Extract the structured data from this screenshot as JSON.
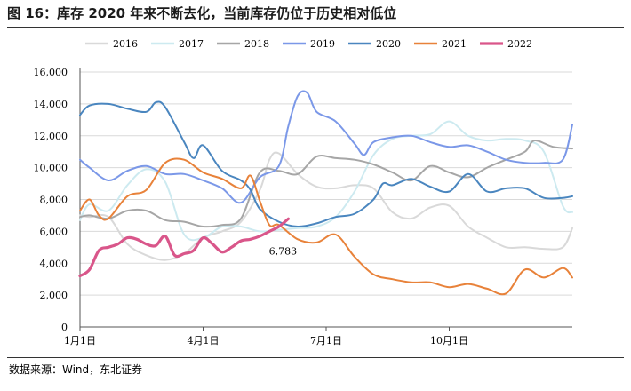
{
  "header": {
    "title": "图 16：库存 2020 年来不断去化，当前库存仍位于历史相对低位"
  },
  "footer": {
    "source": "数据来源：Wind，东北证券"
  },
  "chart_data": {
    "type": "line",
    "title": "",
    "xlabel": "",
    "ylabel": "",
    "ylim": [
      0,
      16000
    ],
    "yticks": [
      0,
      2000,
      4000,
      6000,
      8000,
      10000,
      12000,
      14000,
      16000
    ],
    "ytick_labels": [
      "0",
      "2,000",
      "4,000",
      "6,000",
      "8,000",
      "10,000",
      "12,000",
      "14,000",
      "16,000"
    ],
    "xlim_week": [
      1,
      53
    ],
    "xticks": [
      {
        "label": "1月1日",
        "week": 1
      },
      {
        "label": "4月1日",
        "week": 14
      },
      {
        "label": "7月1日",
        "week": 27
      },
      {
        "label": "10月1日",
        "week": 40
      }
    ],
    "x_unit": "week of year",
    "annotation": {
      "text": "6,783",
      "series": "2022",
      "week": 23,
      "value": 6783
    },
    "series": [
      {
        "name": "2016",
        "color": "#d9d9d9",
        "values": [
          [
            1,
            7000
          ],
          [
            2,
            6900
          ],
          [
            4,
            6900
          ],
          [
            6,
            5200
          ],
          [
            8,
            4500
          ],
          [
            10,
            4200
          ],
          [
            12,
            4600
          ],
          [
            14,
            5600
          ],
          [
            16,
            6000
          ],
          [
            18,
            6600
          ],
          [
            20,
            8600
          ],
          [
            21,
            10500
          ],
          [
            22,
            10900
          ],
          [
            24,
            9600
          ],
          [
            26,
            8800
          ],
          [
            28,
            8700
          ],
          [
            30,
            8900
          ],
          [
            32,
            8700
          ],
          [
            34,
            7200
          ],
          [
            36,
            6800
          ],
          [
            38,
            7500
          ],
          [
            40,
            7600
          ],
          [
            42,
            6300
          ],
          [
            44,
            5600
          ],
          [
            46,
            5000
          ],
          [
            48,
            5000
          ],
          [
            50,
            4900
          ],
          [
            52,
            5000
          ],
          [
            53,
            6200
          ]
        ]
      },
      {
        "name": "2017",
        "color": "#cdeaf0",
        "values": [
          [
            1,
            6700
          ],
          [
            2,
            7700
          ],
          [
            4,
            7300
          ],
          [
            6,
            8900
          ],
          [
            8,
            9900
          ],
          [
            10,
            9100
          ],
          [
            12,
            5800
          ],
          [
            14,
            5600
          ],
          [
            16,
            6300
          ],
          [
            18,
            6300
          ],
          [
            20,
            6000
          ],
          [
            22,
            6100
          ],
          [
            24,
            6200
          ],
          [
            26,
            6300
          ],
          [
            28,
            6900
          ],
          [
            30,
            8500
          ],
          [
            32,
            10800
          ],
          [
            34,
            11800
          ],
          [
            36,
            12000
          ],
          [
            38,
            12100
          ],
          [
            40,
            12900
          ],
          [
            42,
            12000
          ],
          [
            44,
            11700
          ],
          [
            46,
            11800
          ],
          [
            48,
            11700
          ],
          [
            50,
            11000
          ],
          [
            52,
            7600
          ],
          [
            53,
            7200
          ]
        ]
      },
      {
        "name": "2018",
        "color": "#a6a6a6",
        "values": [
          [
            1,
            6900
          ],
          [
            2,
            7000
          ],
          [
            4,
            6800
          ],
          [
            6,
            7300
          ],
          [
            8,
            7300
          ],
          [
            10,
            6700
          ],
          [
            12,
            6600
          ],
          [
            14,
            6300
          ],
          [
            16,
            6400
          ],
          [
            18,
            6800
          ],
          [
            20,
            9700
          ],
          [
            22,
            9800
          ],
          [
            24,
            9600
          ],
          [
            26,
            10700
          ],
          [
            28,
            10600
          ],
          [
            30,
            10500
          ],
          [
            32,
            10200
          ],
          [
            34,
            9700
          ],
          [
            36,
            9200
          ],
          [
            38,
            10100
          ],
          [
            40,
            9700
          ],
          [
            42,
            9400
          ],
          [
            44,
            10000
          ],
          [
            46,
            10500
          ],
          [
            48,
            11000
          ],
          [
            49,
            11700
          ],
          [
            51,
            11300
          ],
          [
            53,
            11200
          ]
        ]
      },
      {
        "name": "2019",
        "color": "#7b98e8",
        "values": [
          [
            1,
            10500
          ],
          [
            2,
            10000
          ],
          [
            4,
            9200
          ],
          [
            6,
            9800
          ],
          [
            8,
            10100
          ],
          [
            10,
            9600
          ],
          [
            12,
            9600
          ],
          [
            14,
            9200
          ],
          [
            16,
            8700
          ],
          [
            18,
            7800
          ],
          [
            20,
            9400
          ],
          [
            22,
            10100
          ],
          [
            23,
            12600
          ],
          [
            24,
            14500
          ],
          [
            25,
            14700
          ],
          [
            26,
            13500
          ],
          [
            28,
            12900
          ],
          [
            30,
            11500
          ],
          [
            31,
            10800
          ],
          [
            32,
            11600
          ],
          [
            34,
            11900
          ],
          [
            36,
            12000
          ],
          [
            38,
            11600
          ],
          [
            40,
            11300
          ],
          [
            42,
            11400
          ],
          [
            44,
            11000
          ],
          [
            46,
            10500
          ],
          [
            48,
            10300
          ],
          [
            50,
            10300
          ],
          [
            52,
            10500
          ],
          [
            53,
            12700
          ]
        ]
      },
      {
        "name": "2020",
        "color": "#4a86bf",
        "values": [
          [
            1,
            13300
          ],
          [
            2,
            13900
          ],
          [
            4,
            14000
          ],
          [
            6,
            13700
          ],
          [
            8,
            13500
          ],
          [
            9,
            14100
          ],
          [
            10,
            13800
          ],
          [
            12,
            11600
          ],
          [
            13,
            10600
          ],
          [
            14,
            11400
          ],
          [
            16,
            9800
          ],
          [
            18,
            9200
          ],
          [
            19,
            8600
          ],
          [
            20,
            7400
          ],
          [
            22,
            6600
          ],
          [
            24,
            6300
          ],
          [
            26,
            6500
          ],
          [
            28,
            6900
          ],
          [
            30,
            7100
          ],
          [
            32,
            8000
          ],
          [
            33,
            9000
          ],
          [
            34,
            8900
          ],
          [
            36,
            9300
          ],
          [
            38,
            8800
          ],
          [
            40,
            8500
          ],
          [
            42,
            9600
          ],
          [
            44,
            8500
          ],
          [
            46,
            8700
          ],
          [
            48,
            8700
          ],
          [
            50,
            8100
          ],
          [
            52,
            8100
          ],
          [
            53,
            8200
          ]
        ]
      },
      {
        "name": "2021",
        "color": "#e8823a",
        "values": [
          [
            1,
            7300
          ],
          [
            2,
            8000
          ],
          [
            3,
            7000
          ],
          [
            4,
            6800
          ],
          [
            6,
            8200
          ],
          [
            8,
            8600
          ],
          [
            10,
            10300
          ],
          [
            12,
            10500
          ],
          [
            14,
            9700
          ],
          [
            16,
            9300
          ],
          [
            18,
            8700
          ],
          [
            19,
            9500
          ],
          [
            20,
            7900
          ],
          [
            21,
            6400
          ],
          [
            22,
            6400
          ],
          [
            24,
            5500
          ],
          [
            26,
            5300
          ],
          [
            28,
            5800
          ],
          [
            30,
            4400
          ],
          [
            32,
            3300
          ],
          [
            34,
            3000
          ],
          [
            36,
            2800
          ],
          [
            38,
            2800
          ],
          [
            40,
            2500
          ],
          [
            42,
            2700
          ],
          [
            44,
            2400
          ],
          [
            46,
            2100
          ],
          [
            48,
            3600
          ],
          [
            50,
            3100
          ],
          [
            52,
            3700
          ],
          [
            53,
            3100
          ]
        ]
      },
      {
        "name": "2022",
        "color": "#d9568a",
        "values": [
          [
            1,
            3200
          ],
          [
            2,
            3600
          ],
          [
            3,
            4800
          ],
          [
            4,
            5000
          ],
          [
            5,
            5200
          ],
          [
            6,
            5600
          ],
          [
            7,
            5500
          ],
          [
            8,
            5200
          ],
          [
            9,
            5100
          ],
          [
            10,
            5700
          ],
          [
            11,
            4500
          ],
          [
            12,
            4600
          ],
          [
            13,
            4800
          ],
          [
            14,
            5600
          ],
          [
            15,
            5200
          ],
          [
            16,
            4700
          ],
          [
            17,
            5000
          ],
          [
            18,
            5400
          ],
          [
            19,
            5500
          ],
          [
            20,
            5700
          ],
          [
            21,
            6000
          ],
          [
            22,
            6300
          ],
          [
            23,
            6783
          ]
        ]
      }
    ]
  }
}
